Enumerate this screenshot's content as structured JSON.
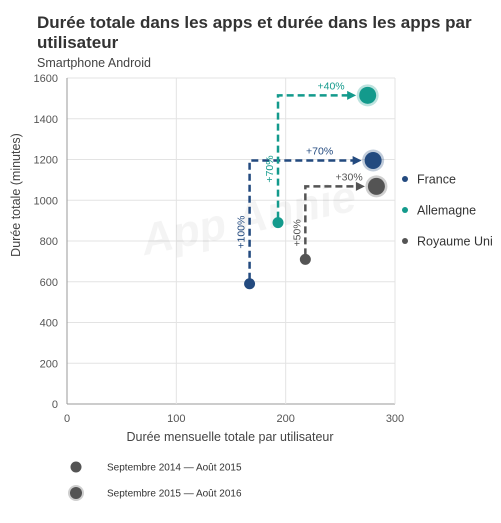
{
  "chart_data": {
    "type": "scatter",
    "title": "Durée totale dans les apps et durée dans les apps par utilisateur",
    "subtitle": "Smartphone Android",
    "xlabel": "Durée mensuelle totale par utilisateur",
    "ylabel": "Durée totale (minutes)",
    "xlim": [
      0,
      300
    ],
    "ylim": [
      0,
      1600
    ],
    "xticks": [
      "0",
      "100",
      "200",
      "300"
    ],
    "yticks": [
      "0",
      "200",
      "400",
      "600",
      "800",
      "1000",
      "1200",
      "1400",
      "1600"
    ],
    "grid": true,
    "watermark": "App Annie",
    "series": [
      {
        "name": "France",
        "color": "#234a7f",
        "from": {
          "x": 167,
          "y": 590
        },
        "to": {
          "x": 280,
          "y": 1195
        },
        "x_change": "+70%",
        "y_change": "+100%"
      },
      {
        "name": "Allemagne",
        "color": "#139a8c",
        "from": {
          "x": 193,
          "y": 890
        },
        "to": {
          "x": 275,
          "y": 1515
        },
        "x_change": "+40%",
        "y_change": "+70%"
      },
      {
        "name": "Royaume Uni",
        "color": "#545454",
        "from": {
          "x": 218,
          "y": 710
        },
        "to": {
          "x": 283,
          "y": 1068
        },
        "x_change": "+30%",
        "y_change": "+50%"
      }
    ],
    "legend_placement": "right",
    "period_legend": [
      {
        "label": "Septembre 2014 — Août 2015",
        "marker": "small-dot"
      },
      {
        "label": "Septembre 2015 — Août 2016",
        "marker": "large-ringed-dot"
      }
    ]
  }
}
